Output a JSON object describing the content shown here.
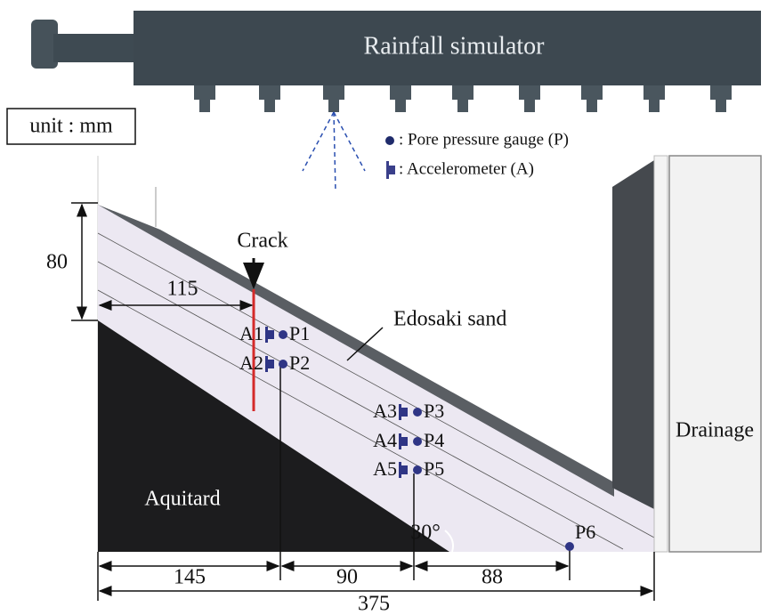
{
  "header": {
    "title": "Rainfall simulator",
    "unit": "unit : mm"
  },
  "legend": {
    "pore_pressure": ": Pore pressure gauge (P)",
    "accelerometer": ": Accelerometer (A)"
  },
  "labels": {
    "crack": "Crack",
    "sand": "Edosaki sand",
    "drainage": "Drainage",
    "aquitard": "Aquitard",
    "angle": "30°"
  },
  "dimensions": {
    "height": "80",
    "crack_offset": "115",
    "left": "145",
    "middle": "90",
    "right": "88",
    "total": "375"
  },
  "sensors": {
    "accelerometers": [
      "A1",
      "A2",
      "A3",
      "A4",
      "A5"
    ],
    "pore_gauges": [
      "P1",
      "P2",
      "P3",
      "P4",
      "P5",
      "P6"
    ]
  }
}
